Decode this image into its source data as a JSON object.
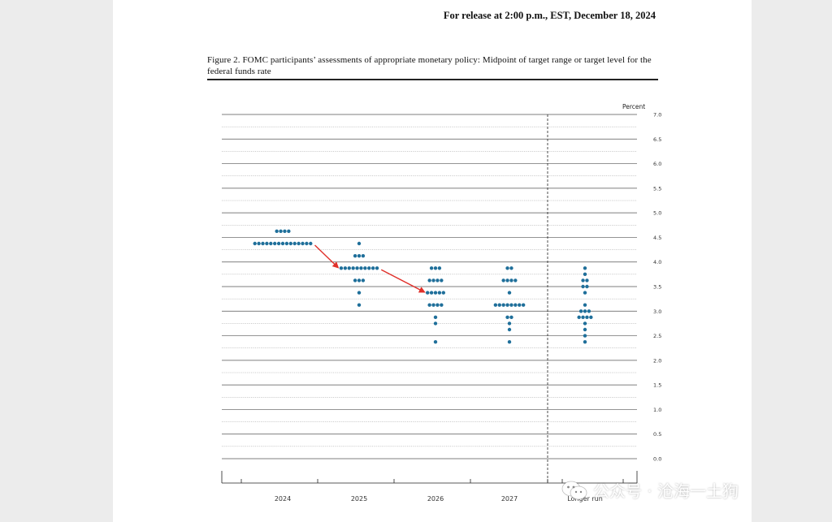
{
  "header": {
    "release_line": "For release at 2:00 p.m., EST, December 18, 2024"
  },
  "figure": {
    "caption": "Figure 2.  FOMC participants’ assessments of appropriate monetary policy:  Midpoint of target range or target level for the federal funds rate"
  },
  "watermark": {
    "text": "公众号 · 沧海一土狗",
    "icon": "wechat-icon"
  },
  "colors": {
    "dot": "#1f6f9a",
    "arrow": "#e0302a",
    "grid": "#555555"
  },
  "chart_data": {
    "type": "scatter",
    "title": "",
    "ylabel": "Percent",
    "xlabel": "",
    "ylim": [
      0,
      7
    ],
    "yticks": [
      "0.0",
      "0.5",
      "1.0",
      "1.5",
      "2.0",
      "2.5",
      "3.0",
      "3.5",
      "4.0",
      "4.5",
      "5.0",
      "5.5",
      "6.0",
      "6.5",
      "7.0"
    ],
    "grid": true,
    "categories": [
      "2024",
      "2025",
      "2026",
      "2027",
      "Longer run"
    ],
    "series": [
      {
        "category": "2024",
        "rates": [
          {
            "value": 4.625,
            "count": 4
          },
          {
            "value": 4.375,
            "count": 15
          }
        ]
      },
      {
        "category": "2025",
        "rates": [
          {
            "value": 4.375,
            "count": 1
          },
          {
            "value": 4.125,
            "count": 3
          },
          {
            "value": 3.875,
            "count": 10
          },
          {
            "value": 3.625,
            "count": 3
          },
          {
            "value": 3.375,
            "count": 1
          },
          {
            "value": 3.125,
            "count": 1
          }
        ]
      },
      {
        "category": "2026",
        "rates": [
          {
            "value": 3.875,
            "count": 3
          },
          {
            "value": 3.625,
            "count": 4
          },
          {
            "value": 3.375,
            "count": 5
          },
          {
            "value": 3.125,
            "count": 4
          },
          {
            "value": 2.875,
            "count": 1
          },
          {
            "value": 2.75,
            "count": 1
          },
          {
            "value": 2.375,
            "count": 1
          }
        ]
      },
      {
        "category": "2027",
        "rates": [
          {
            "value": 3.875,
            "count": 2
          },
          {
            "value": 3.625,
            "count": 4
          },
          {
            "value": 3.375,
            "count": 1
          },
          {
            "value": 3.125,
            "count": 8
          },
          {
            "value": 2.875,
            "count": 2
          },
          {
            "value": 2.75,
            "count": 1
          },
          {
            "value": 2.625,
            "count": 1
          },
          {
            "value": 2.375,
            "count": 1
          }
        ]
      },
      {
        "category": "Longer run",
        "rates": [
          {
            "value": 3.875,
            "count": 1
          },
          {
            "value": 3.75,
            "count": 1
          },
          {
            "value": 3.625,
            "count": 2
          },
          {
            "value": 3.5,
            "count": 2
          },
          {
            "value": 3.375,
            "count": 1
          },
          {
            "value": 3.125,
            "count": 1
          },
          {
            "value": 3.0,
            "count": 3
          },
          {
            "value": 2.875,
            "count": 4
          },
          {
            "value": 2.75,
            "count": 1
          },
          {
            "value": 2.625,
            "count": 1
          },
          {
            "value": 2.5,
            "count": 1
          },
          {
            "value": 2.375,
            "count": 1
          }
        ]
      }
    ],
    "annotations": [
      {
        "type": "arrow",
        "from": {
          "category": "2024",
          "value": 4.375
        },
        "to": {
          "category": "2025",
          "value": 3.875
        }
      },
      {
        "type": "arrow",
        "from": {
          "category": "2025",
          "value": 3.875
        },
        "to": {
          "category": "2026",
          "value": 3.375
        }
      }
    ]
  }
}
